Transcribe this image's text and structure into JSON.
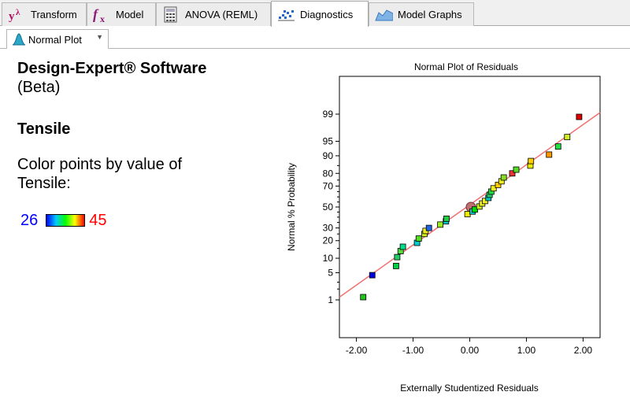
{
  "tabs": [
    {
      "label": "Transform",
      "icon": "transform-icon"
    },
    {
      "label": "Model",
      "icon": "model-fx-icon"
    },
    {
      "label": "ANOVA (REML)",
      "icon": "calculator-icon"
    },
    {
      "label": "Diagnostics",
      "icon": "diagnostics-icon",
      "active": true
    },
    {
      "label": "Model Graphs",
      "icon": "model-graphs-icon"
    }
  ],
  "subtab": {
    "label": "Normal Plot",
    "icon": "normal-plot-icon"
  },
  "info": {
    "software_title": "Design-Expert® Software",
    "software_subtitle": "(Beta)",
    "response": "Tensile",
    "color_by": "Color points by value of Tensile:",
    "legend_min": "26",
    "legend_max": "45",
    "gradient_colors": [
      "#0000ff",
      "#00c8ff",
      "#00ff00",
      "#ffff00",
      "#ff0000"
    ]
  },
  "chart_data": {
    "type": "scatter",
    "title": "Normal Plot of Residuals",
    "xlabel": "Externally Studentized Residuals",
    "ylabel": "Normal % Probability",
    "xlim": [
      -2.3,
      2.3
    ],
    "x_ticks": [
      "-2.00",
      "-1.00",
      "0.00",
      "1.00",
      "2.00"
    ],
    "x_tick_values": [
      -2,
      -1,
      0,
      1,
      2
    ],
    "y_ticks": [
      "1",
      "5",
      "10",
      "20",
      "30",
      "50",
      "70",
      "80",
      "90",
      "95",
      "99"
    ],
    "y_tick_values": [
      1,
      5,
      10,
      20,
      30,
      50,
      70,
      80,
      90,
      95,
      99
    ],
    "ylim": [
      0.1,
      99.9
    ],
    "grid": false,
    "reference_line": {
      "color": "#f07070",
      "from": [
        -2.3,
        1.2
      ],
      "to": [
        2.3,
        99.1
      ]
    },
    "highlight_point": {
      "x": 0.02,
      "y": 50,
      "color": "#c07070"
    },
    "points": [
      {
        "x": -1.88,
        "y": 1.2,
        "color": "#22c422"
      },
      {
        "x": -1.72,
        "y": 4.4,
        "color": "#0000dd"
      },
      {
        "x": -1.3,
        "y": 7.0,
        "color": "#00cc44"
      },
      {
        "x": -1.28,
        "y": 10.5,
        "color": "#22cc66"
      },
      {
        "x": -1.22,
        "y": 13.5,
        "color": "#55dd44"
      },
      {
        "x": -1.18,
        "y": 16.0,
        "color": "#00dd88"
      },
      {
        "x": -0.93,
        "y": 18.5,
        "color": "#00cccc"
      },
      {
        "x": -0.9,
        "y": 21.5,
        "color": "#55dd22"
      },
      {
        "x": -0.8,
        "y": 25.0,
        "color": "#ccee22"
      },
      {
        "x": -0.78,
        "y": 27.5,
        "color": "#eeee22"
      },
      {
        "x": -0.72,
        "y": 30.0,
        "color": "#2266dd"
      },
      {
        "x": -0.52,
        "y": 33.0,
        "color": "#99ee22"
      },
      {
        "x": -0.42,
        "y": 36.0,
        "color": "#00cccc"
      },
      {
        "x": -0.41,
        "y": 38.5,
        "color": "#22cc44"
      },
      {
        "x": -0.04,
        "y": 43.0,
        "color": "#eeee00"
      },
      {
        "x": 0.05,
        "y": 45.5,
        "color": "#00cccc"
      },
      {
        "x": 0.09,
        "y": 47.5,
        "color": "#00dd00"
      },
      {
        "x": 0.17,
        "y": 50.5,
        "color": "#ccee22"
      },
      {
        "x": 0.22,
        "y": 53.5,
        "color": "#eeee22"
      },
      {
        "x": 0.27,
        "y": 56.0,
        "color": "#eeee22"
      },
      {
        "x": 0.33,
        "y": 59.0,
        "color": "#00cccc"
      },
      {
        "x": 0.35,
        "y": 62.0,
        "color": "#22cc66"
      },
      {
        "x": 0.38,
        "y": 65.0,
        "color": "#22dd44"
      },
      {
        "x": 0.42,
        "y": 68.0,
        "color": "#eeee22"
      },
      {
        "x": 0.5,
        "y": 71.0,
        "color": "#ffcc00"
      },
      {
        "x": 0.56,
        "y": 74.0,
        "color": "#eeee22"
      },
      {
        "x": 0.6,
        "y": 77.0,
        "color": "#88dd22"
      },
      {
        "x": 0.75,
        "y": 80.0,
        "color": "#ee3333"
      },
      {
        "x": 0.82,
        "y": 82.5,
        "color": "#55dd22"
      },
      {
        "x": 1.07,
        "y": 85.0,
        "color": "#eeee00"
      },
      {
        "x": 1.08,
        "y": 87.5,
        "color": "#ffcc00"
      },
      {
        "x": 1.4,
        "y": 90.5,
        "color": "#ff9900"
      },
      {
        "x": 1.56,
        "y": 93.5,
        "color": "#22dd44"
      },
      {
        "x": 1.72,
        "y": 96.0,
        "color": "#ccee22"
      },
      {
        "x": 1.93,
        "y": 98.8,
        "color": "#dd0000"
      }
    ]
  }
}
